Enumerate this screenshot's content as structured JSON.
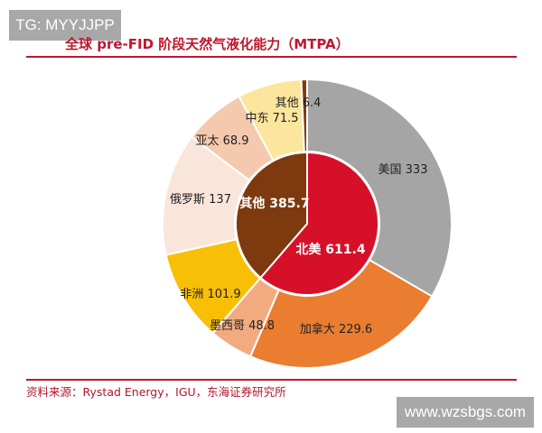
{
  "watermarks": {
    "top": "TG: MYYJJPP",
    "bottom": "www.wzsbgs.com"
  },
  "chart_data": {
    "type": "pie",
    "title": "全球 pre-FID 阶段天然气液化能力（MTPA）",
    "source": "资料来源：Rystad Energy，IGU，东海证券研究所",
    "inner": [
      {
        "label": "北美",
        "value": 611.4,
        "color": "#d7102a"
      },
      {
        "label": "其他",
        "value": 385.7,
        "color": "#7d3a0f"
      }
    ],
    "outer": [
      {
        "label": "美国",
        "value": 333,
        "color": "#a5a5a5"
      },
      {
        "label": "加拿大",
        "value": 229.6,
        "color": "#ea7d30"
      },
      {
        "label": "墨西哥",
        "value": 48.8,
        "color": "#f2ab80"
      },
      {
        "label": "非洲",
        "value": 101.9,
        "color": "#f8bf06"
      },
      {
        "label": "俄罗斯",
        "value": 137,
        "color": "#f9e5da"
      },
      {
        "label": "亚太",
        "value": 68.9,
        "color": "#f4c9ad"
      },
      {
        "label": "中东",
        "value": 71.5,
        "color": "#fce59d"
      },
      {
        "label": "其他",
        "value": 6.4,
        "color": "#7d3a0f"
      }
    ]
  }
}
